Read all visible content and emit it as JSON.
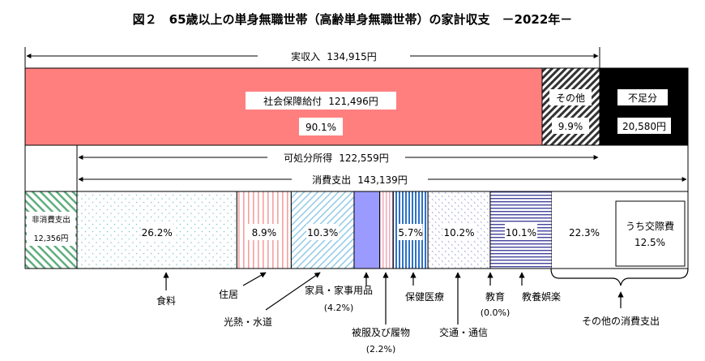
{
  "chart_data": {
    "type": "bar",
    "title": "図２　65歳以上の単身無職世帯（高齢単身無職世帯）の家計収支　－2022年－",
    "unit": "円",
    "income": {
      "label": "実収入",
      "total_text": "134,915円",
      "segments": [
        {
          "key": "social",
          "label": "社会保障給付",
          "value": 121496,
          "value_text": "121,496円",
          "share_text": "90.1%",
          "color": "#ff7f7f"
        },
        {
          "key": "other",
          "label": "その他",
          "share_text": "9.9%"
        },
        {
          "key": "deficit",
          "label": "不足分",
          "value": 20580,
          "value_text": "20,580円",
          "color": "#000000"
        }
      ]
    },
    "disposable": {
      "label": "可処分所得",
      "value_text": "122,559円"
    },
    "consumption": {
      "label": "消費支出",
      "value_text": "143,139円"
    },
    "non_consumption": {
      "label": "非消費支出",
      "value": 12356,
      "value_text": "12,356円",
      "color": "#5fae7e"
    },
    "expenditure_items": [
      {
        "key": "food",
        "label": "食料",
        "share": 26.2,
        "share_text": "26.2%",
        "color": "#7fc9c9"
      },
      {
        "key": "housing",
        "label": "住居",
        "share": 8.9,
        "share_text": "8.9%",
        "color": "#f4a0a0"
      },
      {
        "key": "utilities",
        "label": "光熱・水道",
        "share": 10.3,
        "share_text": "10.3%",
        "color": "#8ac6e6"
      },
      {
        "key": "household",
        "label": "家具・家事用品",
        "share": 4.2,
        "share_text": "(4.2%)",
        "color": "#8c8cff"
      },
      {
        "key": "clothing",
        "label": "被服及び履物",
        "share": 2.2,
        "share_text": "(2.2%)",
        "color": "#f3a8b8"
      },
      {
        "key": "medical",
        "label": "保健医療",
        "share": 5.7,
        "share_text": "5.7%",
        "color": "#2e72c8"
      },
      {
        "key": "transport",
        "label": "交通・通信",
        "share": 10.2,
        "share_text": "10.2%",
        "color": "#a7a7e2"
      },
      {
        "key": "education",
        "label": "教育",
        "share": 0.0,
        "share_text": "(0.0%)"
      },
      {
        "key": "recreation",
        "label": "教養娯楽",
        "share": 10.1,
        "share_text": "10.1%",
        "color": "#44449c"
      },
      {
        "key": "otherexp",
        "label": "その他の消費支出",
        "share": 22.3,
        "share_text": "22.3%"
      }
    ],
    "social_expenses": {
      "label": "うち交際費",
      "share": 12.5,
      "share_text": "12.5%"
    }
  }
}
